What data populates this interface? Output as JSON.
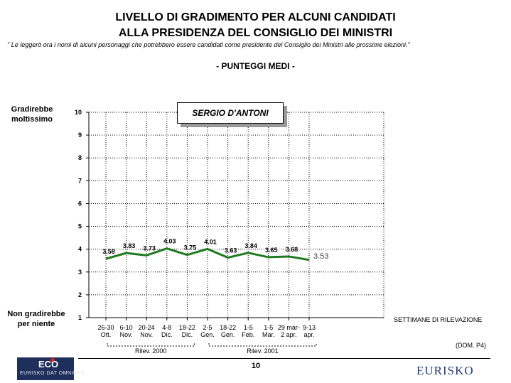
{
  "header": {
    "title_line1": "LIVELLO DI GRADIMENTO PER ALCUNI CANDIDATI",
    "title_line2": "ALLA PRESIDENZA DEL CONSIGLIO DEI MINISTRI",
    "note": "\" Le leggerò ora i nomi di alcuni personaggi che potrebbero essere candidati come presidente del Consiglio dei Ministri alle prossime elezioni.\"",
    "subtitle": "- PUNTEGGI MEDI -"
  },
  "side_labels": {
    "top": [
      "Gradirebbe",
      "moltissimo"
    ],
    "bottom": [
      "Non gradirebbe",
      "per niente"
    ]
  },
  "candidate_box": "SERGIO D'ANTONI",
  "axis_note": "SETTIMANE DI RILEVAZIONE",
  "dom_note": "(DOM. P4)",
  "page_number": "10",
  "logos": {
    "left_main": "ECO",
    "left_sub": "EURISKO DAT OMNIBUS",
    "right": "EURISKO"
  },
  "colors": {
    "line": "#1e7a1e"
  },
  "chart_data": {
    "type": "line",
    "ylim": [
      1,
      10
    ],
    "yticks": [
      "1",
      "2",
      "3",
      "4",
      "5",
      "6",
      "7",
      "8",
      "9",
      "10"
    ],
    "categories": [
      [
        "26-30",
        "Ott."
      ],
      [
        "6-10",
        "Nov."
      ],
      [
        "20-24",
        "Nov."
      ],
      [
        "4-8",
        "Dic."
      ],
      [
        "18-22",
        "Dic."
      ],
      [
        "2-5",
        "Gen."
      ],
      [
        "18-22",
        "Gen."
      ],
      [
        "1-5",
        "Feb."
      ],
      [
        "1-5",
        "Mar."
      ],
      [
        "29 mar-",
        "2 apr."
      ],
      [
        "9-13",
        "apr."
      ]
    ],
    "values": [
      3.58,
      3.83,
      3.73,
      4.03,
      3.75,
      4.01,
      3.63,
      3.84,
      3.65,
      3.68,
      3.53
    ],
    "value_labels": [
      "3.58",
      "3.83",
      "3.73",
      "4.03",
      "3.75",
      "4.01",
      "3.63",
      "3.84",
      "3.65",
      "3.68",
      "3.53"
    ],
    "groups": [
      {
        "label": "Rilev. 2000",
        "from": 0,
        "to": 4
      },
      {
        "label": "Rilev. 2001",
        "from": 5,
        "to": 10
      }
    ],
    "grid": true
  }
}
